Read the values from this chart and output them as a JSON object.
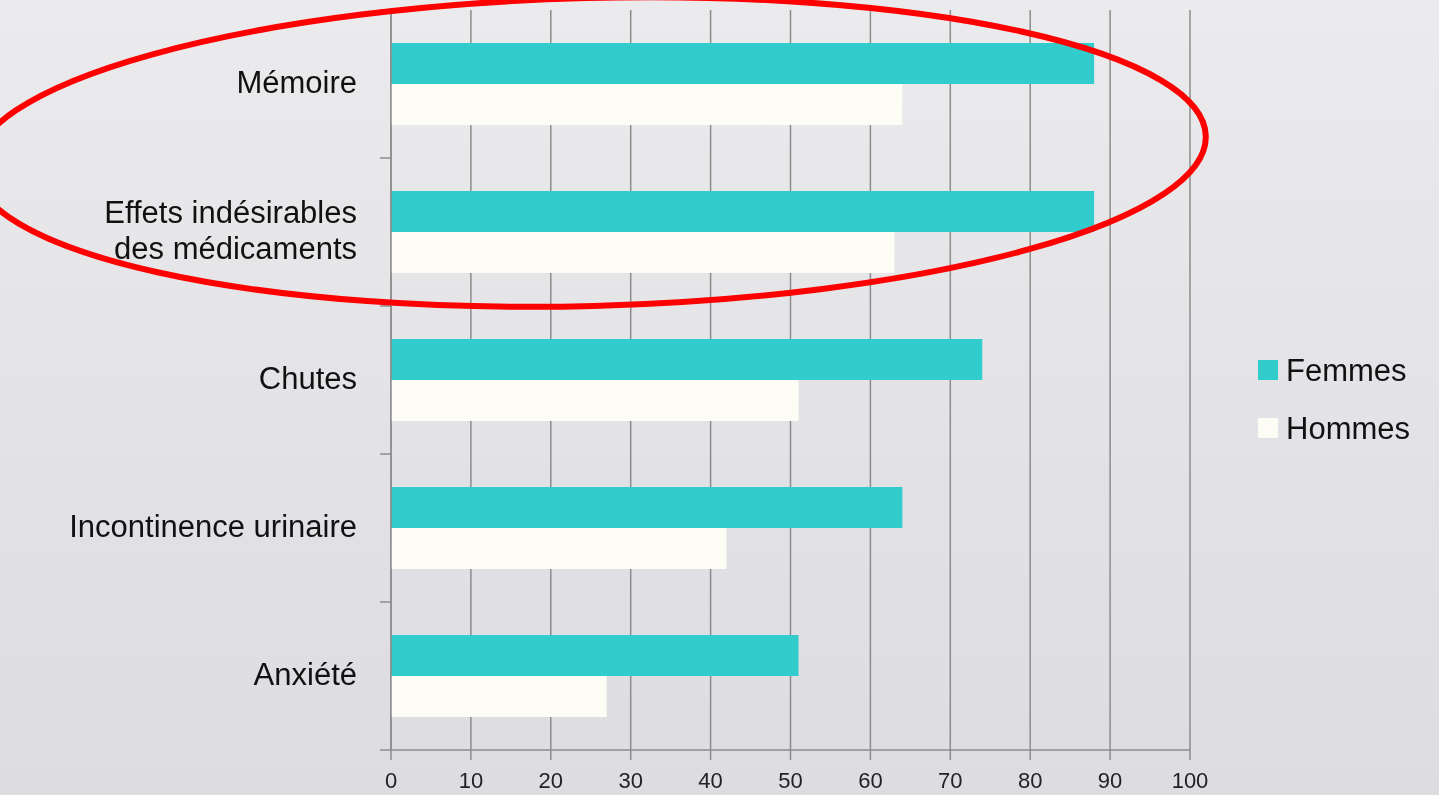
{
  "chart_data": {
    "type": "bar",
    "orientation": "horizontal",
    "categories": [
      "Mémoire",
      "Effets indésirables\ndes médicaments",
      "Chutes",
      "Incontinence urinaire",
      "Anxiété"
    ],
    "series": [
      {
        "name": "Femmes",
        "color": "#33cccc",
        "values": [
          88,
          88,
          74,
          64,
          51
        ]
      },
      {
        "name": "Hommes",
        "color": "#fdfdf5",
        "values": [
          64,
          63,
          51,
          42,
          27
        ]
      }
    ],
    "xlim": [
      0,
      100
    ],
    "xticks": [
      0,
      10,
      20,
      30,
      40,
      50,
      60,
      70,
      80,
      90,
      100
    ],
    "grid": "x",
    "legend": "right"
  }
}
